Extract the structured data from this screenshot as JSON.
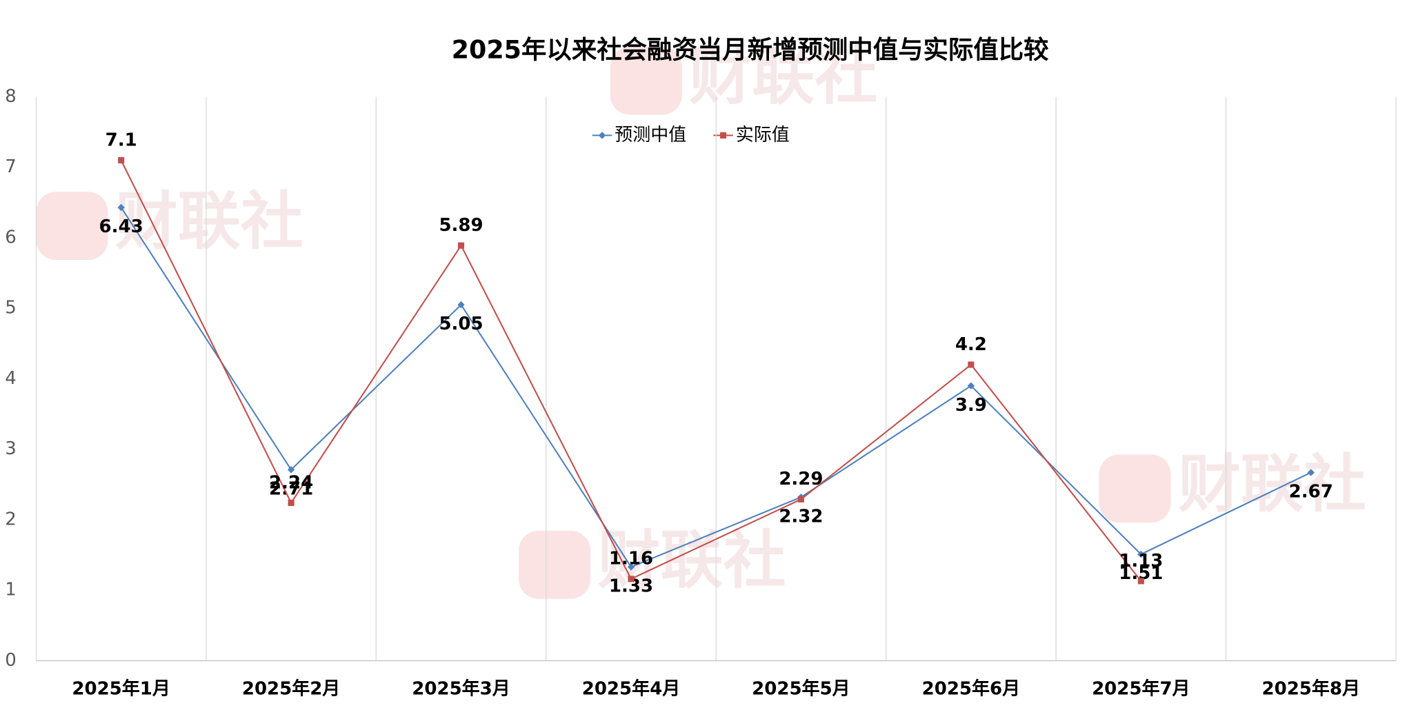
{
  "chart_data": {
    "type": "line",
    "title": "2025年以来社会融资当月新增预测中值与实际值比较",
    "watermark": "财联社",
    "categories": [
      "2025年1月",
      "2025年2月",
      "2025年3月",
      "2025年4月",
      "2025年5月",
      "2025年6月",
      "2025年7月",
      "2025年8月"
    ],
    "series": [
      {
        "name": "预测中值",
        "color": "#4f81bd",
        "marker": "diamond",
        "label_position": "below",
        "values": [
          6.43,
          2.71,
          5.05,
          1.33,
          2.32,
          3.9,
          1.51,
          2.67
        ]
      },
      {
        "name": "实际值",
        "color": "#c0504d",
        "marker": "square",
        "label_position": "above",
        "values": [
          7.1,
          2.24,
          5.89,
          1.16,
          2.29,
          4.2,
          1.13,
          null
        ]
      }
    ],
    "ylim": [
      0,
      8
    ],
    "yticks": [
      0,
      1,
      2,
      3,
      4,
      5,
      6,
      7,
      8
    ],
    "grid": true,
    "legend": "top"
  }
}
